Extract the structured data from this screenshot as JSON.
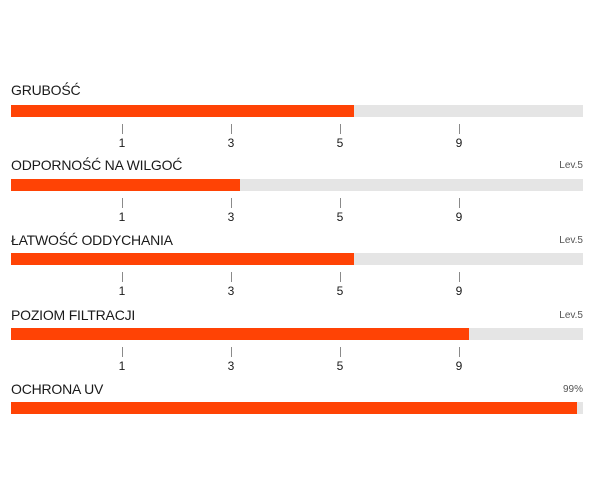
{
  "colors": {
    "fill": "#ff4305",
    "track": "#e5e5e5",
    "tick": "#8a8a8a",
    "text": "#1a1a1a"
  },
  "scale_labels": [
    "1",
    "3",
    "5",
    "9"
  ],
  "metrics": [
    {
      "label": "GRUBOŚĆ",
      "level_text": "",
      "fill_fraction": 0.6
    },
    {
      "label": "ODPORNOŚĆ NA WILGOĆ",
      "level_text": "Lev.5",
      "fill_fraction": 0.4
    },
    {
      "label": "ŁATWOŚĆ ODDYCHANIA",
      "level_text": "Lev.5",
      "fill_fraction": 0.6
    },
    {
      "label": "POZIOM FILTRACJI",
      "level_text": "Lev.5",
      "fill_fraction": 0.8
    },
    {
      "label": "OCHRONA UV",
      "level_text": "99%",
      "fill_fraction": 0.99
    }
  ]
}
